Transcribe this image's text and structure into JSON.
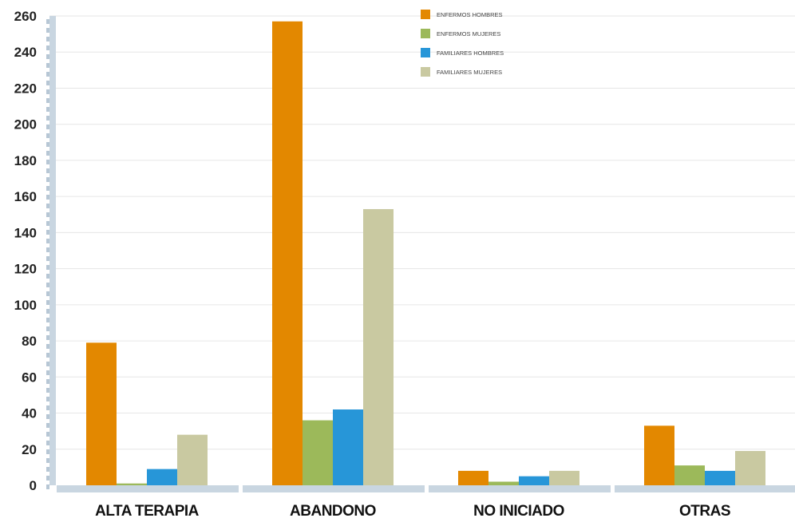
{
  "chart_data": {
    "type": "bar",
    "categories": [
      "ALTA TERAPIA",
      "ABANDONO",
      "NO INICIADO",
      "OTRAS"
    ],
    "series": [
      {
        "name": "ENFERMOS HOMBRES",
        "color": "#e38800",
        "values": [
          79,
          257,
          8,
          33
        ]
      },
      {
        "name": "ENFERMOS MUJERES",
        "color": "#9cb95a",
        "values": [
          1,
          36,
          2,
          11
        ]
      },
      {
        "name": "FAMILIARES HOMBRES",
        "color": "#2796d8",
        "values": [
          9,
          42,
          5,
          8
        ]
      },
      {
        "name": "FAMILIARES MUJERES",
        "color": "#c9c9a1",
        "values": [
          28,
          153,
          8,
          19
        ]
      }
    ],
    "yticks": [
      0,
      20,
      40,
      60,
      80,
      100,
      120,
      140,
      160,
      180,
      200,
      220,
      240,
      260
    ],
    "ylim": [
      0,
      260
    ],
    "grid": true,
    "legend_position": "top-center",
    "title": "",
    "xlabel": "",
    "ylabel": ""
  }
}
